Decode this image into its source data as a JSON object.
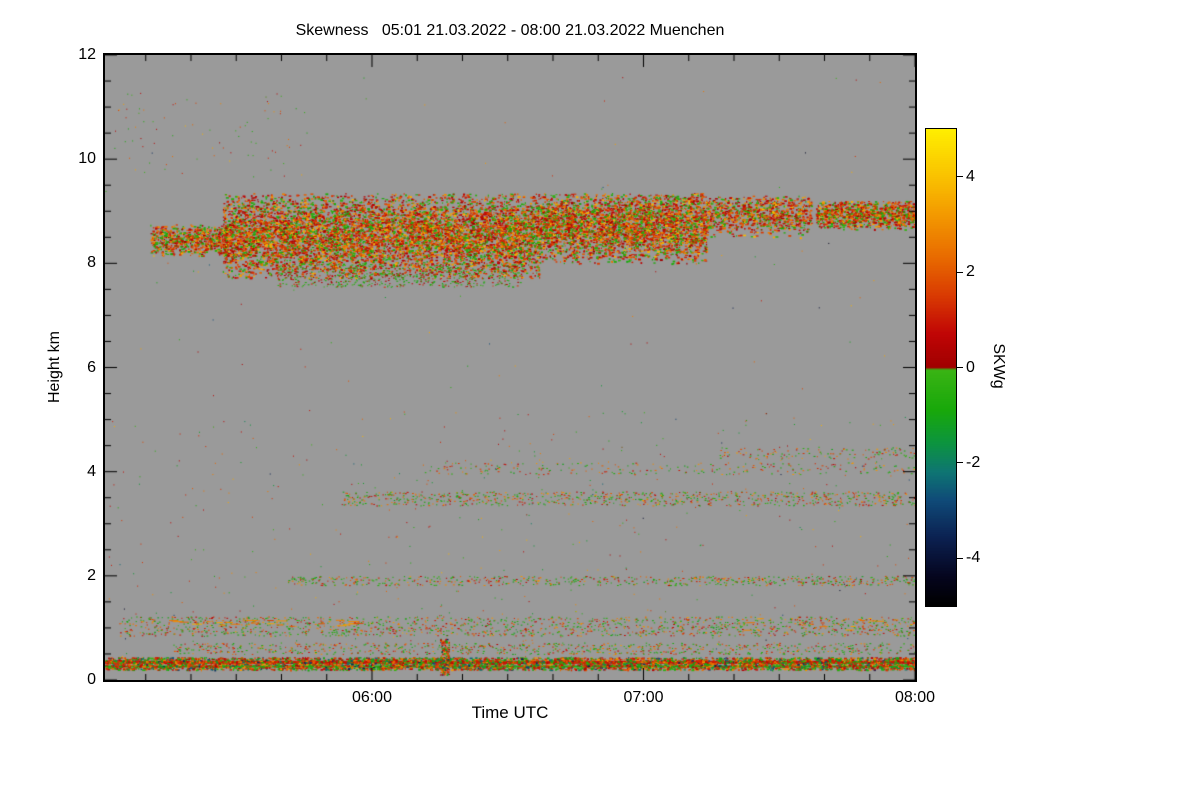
{
  "chart_data": {
    "type": "heatmap",
    "title": "Skewness   05:01 21.03.2022 - 08:00 21.03.2022 Muenchen",
    "xlabel": "Time UTC",
    "ylabel": "Height km",
    "station": "Muenchen",
    "date": "21.03.2022",
    "x_start_time": "05:01",
    "x_end_time": "08:00",
    "x_domain_minutes": [
      0,
      179
    ],
    "x_ticks": [
      {
        "t": 59,
        "label": "06:00"
      },
      {
        "t": 119,
        "label": "07:00"
      },
      {
        "t": 179,
        "label": "08:00"
      }
    ],
    "y_domain_km": [
      0,
      12
    ],
    "y_ticks": [
      0,
      2,
      4,
      6,
      8,
      10,
      12
    ],
    "background_color": "#9a9a9a",
    "axis_color": "#000000",
    "seed": 12345,
    "colorbar": {
      "label": "SKWg",
      "min": -5,
      "max": 5,
      "ticks": [
        4,
        2,
        0,
        -2,
        -4
      ],
      "stops": [
        [
          -5.0,
          "#000000"
        ],
        [
          -4.4,
          "#05051e"
        ],
        [
          -3.6,
          "#0b2050"
        ],
        [
          -2.8,
          "#0f4a78"
        ],
        [
          -2.2,
          "#0e7573"
        ],
        [
          -1.6,
          "#0c9440"
        ],
        [
          -0.9,
          "#18a80a"
        ],
        [
          -0.05,
          "#3ab414"
        ],
        [
          0.0,
          "#a00000"
        ],
        [
          0.7,
          "#c00505"
        ],
        [
          1.5,
          "#d93a02"
        ],
        [
          2.3,
          "#e86a00"
        ],
        [
          3.1,
          "#f29400"
        ],
        [
          3.9,
          "#f9bd00"
        ],
        [
          4.5,
          "#fcd800"
        ],
        [
          5.0,
          "#ffef00"
        ]
      ]
    },
    "mixes": {
      "cloud": [
        {
          "w": 0.38,
          "v": [
            0.3,
            1.6
          ]
        },
        {
          "w": 0.3,
          "v": [
            -1.0,
            0.15
          ]
        },
        {
          "w": 0.22,
          "v": [
            1.6,
            2.9
          ]
        },
        {
          "w": 0.1,
          "v": [
            2.9,
            3.9
          ]
        }
      ],
      "cloudGreen": [
        {
          "w": 0.6,
          "v": [
            -1.1,
            0.1
          ]
        },
        {
          "w": 0.4,
          "v": [
            0.3,
            1.5
          ]
        }
      ],
      "surface": [
        {
          "w": 0.38,
          "v": [
            0.4,
            1.8
          ]
        },
        {
          "w": 0.3,
          "v": [
            -1.3,
            -0.1
          ]
        },
        {
          "w": 0.2,
          "v": [
            1.8,
            3.3
          ]
        },
        {
          "w": 0.12,
          "v": [
            -3.6,
            -1.4
          ]
        }
      ],
      "sparse": [
        {
          "w": 0.45,
          "v": [
            -1.2,
            -0.1
          ]
        },
        {
          "w": 0.3,
          "v": [
            0.4,
            1.8
          ]
        },
        {
          "w": 0.25,
          "v": [
            1.8,
            3.3
          ]
        }
      ],
      "orange": [
        {
          "w": 0.75,
          "v": [
            2.5,
            3.6
          ]
        },
        {
          "w": 0.25,
          "v": [
            1.4,
            2.5
          ]
        }
      ],
      "full": [
        {
          "w": 0.35,
          "v": [
            -1.5,
            0.0
          ]
        },
        {
          "w": 0.35,
          "v": [
            0.3,
            2.2
          ]
        },
        {
          "w": 0.2,
          "v": [
            2.2,
            3.8
          ]
        },
        {
          "w": 0.1,
          "v": [
            -4.5,
            -1.5
          ]
        }
      ]
    },
    "bands": [
      {
        "name": "cloud-early-patch",
        "t": [
          10,
          27
        ],
        "h": [
          8.15,
          8.75
        ],
        "profile": "gauss",
        "center": 8.45,
        "sigma": 0.18,
        "count": 700,
        "dot": [
          1,
          3,
          1,
          2
        ],
        "mix": "cloud"
      },
      {
        "name": "cloud-main",
        "t": [
          26,
          96
        ],
        "h": [
          7.72,
          9.35
        ],
        "profile": "gauss",
        "center": 8.55,
        "sigma": 0.42,
        "count": 7500,
        "dot": [
          1,
          3,
          1,
          2
        ],
        "mix": "cloud"
      },
      {
        "name": "cloud-main-base",
        "t": [
          38,
          92
        ],
        "h": [
          7.55,
          8.0
        ],
        "count": 700,
        "dot": [
          1,
          2,
          1,
          1
        ],
        "mix": "cloudGreen"
      },
      {
        "name": "cloud-mid",
        "t": [
          96,
          133
        ],
        "h": [
          8.0,
          9.35
        ],
        "profile": "gauss",
        "center": 8.72,
        "sigma": 0.36,
        "count": 3600,
        "dot": [
          1,
          3,
          1,
          2
        ],
        "mix": "cloud"
      },
      {
        "name": "cloud-late-patchy",
        "t": [
          133,
          156
        ],
        "h": [
          8.5,
          9.3
        ],
        "profile": "gauss",
        "center": 8.95,
        "sigma": 0.22,
        "count": 900,
        "dot": [
          1,
          3,
          1,
          2
        ],
        "mix": "cloud"
      },
      {
        "name": "cloud-fringe-late",
        "t": [
          157,
          179
        ],
        "h": [
          8.65,
          9.2
        ],
        "profile": "gauss",
        "center": 8.95,
        "sigma": 0.16,
        "count": 1000,
        "dot": [
          1,
          3,
          1,
          2
        ],
        "mix": "cloud"
      },
      {
        "name": "surface-line-red",
        "type": "line",
        "t": [
          0,
          179
        ],
        "h": 0.34,
        "px": 3,
        "value": 1.0
      },
      {
        "name": "surface-line-green",
        "type": "line",
        "t": [
          0,
          179
        ],
        "h": 0.26,
        "px": 2,
        "value": -0.6
      },
      {
        "name": "surface-speckle",
        "t": [
          0,
          179
        ],
        "h": [
          0.2,
          0.44
        ],
        "count": 4500,
        "dot": [
          1,
          3,
          1,
          2
        ],
        "mix": "surface"
      },
      {
        "name": "layer-05km",
        "t": [
          15,
          179
        ],
        "h": [
          0.5,
          0.72
        ],
        "count": 800,
        "dot": [
          1,
          2,
          1,
          1
        ],
        "mix": "sparse"
      },
      {
        "name": "layer-1km",
        "t": [
          3,
          179
        ],
        "h": [
          0.85,
          1.22
        ],
        "count": 1500,
        "dot": [
          1,
          2,
          1,
          1
        ],
        "mix": "sparse"
      },
      {
        "name": "dashes-1km-early",
        "t": [
          6,
          55
        ],
        "h": [
          1.04,
          1.16
        ],
        "count": 26,
        "dot": [
          4,
          11,
          1,
          1
        ],
        "mix": "orange"
      },
      {
        "name": "dashes-1km-late",
        "t": [
          140,
          179
        ],
        "h": [
          0.95,
          1.2
        ],
        "count": 18,
        "dot": [
          3,
          9,
          1,
          1
        ],
        "mix": "orange"
      },
      {
        "name": "row-2km",
        "t": [
          40,
          179
        ],
        "h": [
          1.82,
          2.0
        ],
        "count": 650,
        "dot": [
          1,
          2,
          1,
          1
        ],
        "mix": "sparse"
      },
      {
        "name": "row-3p5km",
        "t": [
          52,
          179
        ],
        "h": [
          3.35,
          3.62
        ],
        "count": 850,
        "dot": [
          1,
          2,
          1,
          1
        ],
        "mix": "sparse"
      },
      {
        "name": "row-4km",
        "t": [
          70,
          179
        ],
        "h": [
          3.95,
          4.18
        ],
        "count": 240,
        "dot": [
          1,
          2,
          1,
          1
        ],
        "mix": "sparse"
      },
      {
        "name": "row-4p3km",
        "t": [
          135,
          179
        ],
        "h": [
          4.25,
          4.48
        ],
        "count": 130,
        "dot": [
          1,
          2,
          1,
          1
        ],
        "mix": "sparse"
      },
      {
        "name": "noise-low",
        "t": [
          0,
          179
        ],
        "h": [
          0.4,
          5.2
        ],
        "count": 450,
        "dot": [
          1,
          1,
          1,
          1
        ],
        "mix": "full"
      },
      {
        "name": "noise-high-early",
        "t": [
          2,
          45
        ],
        "h": [
          9.6,
          11.3
        ],
        "count": 80,
        "dot": [
          1,
          1,
          1,
          1
        ],
        "mix": "cloud"
      },
      {
        "name": "noise-upper",
        "t": [
          0,
          179
        ],
        "h": [
          5.2,
          11.8
        ],
        "count": 90,
        "dot": [
          1,
          1,
          1,
          1
        ],
        "mix": "full"
      },
      {
        "name": "vertical-streak",
        "t": [
          74,
          76
        ],
        "h": [
          0.1,
          0.8
        ],
        "count": 150,
        "dot": [
          1,
          2,
          1,
          2
        ],
        "mix": "surface"
      }
    ]
  }
}
